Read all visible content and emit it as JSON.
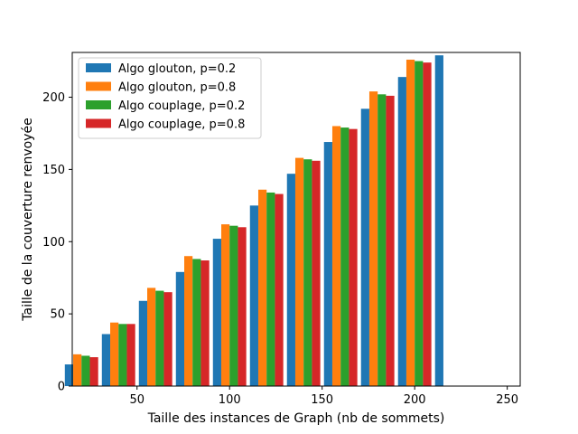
{
  "chart_data": {
    "type": "bar",
    "title": "",
    "xlabel": "Taille des instances de Graph (nb de sommets)",
    "ylabel": "Taille de la couverture renvoyée",
    "x": [
      20,
      40,
      60,
      80,
      100,
      120,
      140,
      160,
      180,
      200,
      220
    ],
    "xlim": [
      15,
      257
    ],
    "ylim": [
      0,
      231
    ],
    "xticks": [
      50,
      100,
      150,
      200,
      250
    ],
    "yticks": [
      0,
      50,
      100,
      150,
      200
    ],
    "grid": false,
    "legend_position": "top-left",
    "series": [
      {
        "name": "Algo glouton, p=0.2",
        "color": "#1f77b4",
        "values": [
          15,
          36,
          59,
          79,
          102,
          125,
          147,
          169,
          192,
          214,
          229
        ]
      },
      {
        "name": "Algo glouton, p=0.8",
        "color": "#ff7f0e",
        "values": [
          22,
          44,
          68,
          90,
          112,
          136,
          158,
          180,
          204,
          226,
          0
        ]
      },
      {
        "name": "Algo couplage, p=0.2",
        "color": "#2ca02c",
        "values": [
          21,
          43,
          66,
          88,
          111,
          134,
          157,
          179,
          202,
          225,
          0
        ]
      },
      {
        "name": "Algo couplage, p=0.8",
        "color": "#d62728",
        "values": [
          20,
          43,
          65,
          87,
          110,
          133,
          156,
          178,
          201,
          224,
          0
        ]
      }
    ]
  }
}
